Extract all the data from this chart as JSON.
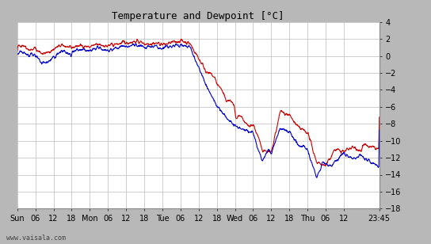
{
  "title": "Temperature and Dewpoint [°C]",
  "ylim": [
    -18,
    4
  ],
  "yticks": [
    -18,
    -16,
    -14,
    -12,
    -10,
    -8,
    -6,
    -4,
    -2,
    0,
    2,
    4
  ],
  "temp_color": "#cc0000",
  "dewp_color": "#0000cc",
  "bg_color": "#ffffff",
  "grid_color": "#bbbbbb",
  "outer_bg": "#b8b8b8",
  "watermark": "www.vaisala.com",
  "x_tick_labels": [
    "Sun",
    "06",
    "12",
    "18",
    "Mon",
    "06",
    "12",
    "18",
    "Tue",
    "06",
    "12",
    "18",
    "Wed",
    "06",
    "12",
    "18",
    "Thu",
    "06",
    "12",
    "23:45"
  ],
  "x_tick_positions": [
    0,
    6,
    12,
    18,
    24,
    30,
    36,
    42,
    48,
    54,
    60,
    66,
    72,
    78,
    84,
    90,
    96,
    102,
    108,
    119.75
  ],
  "x_total_hours": 119.75,
  "line_width": 0.8
}
